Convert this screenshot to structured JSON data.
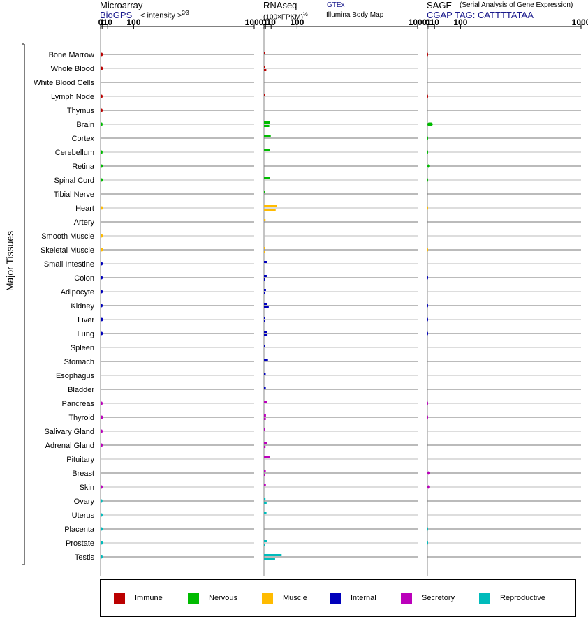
{
  "panels": [
    {
      "id": "microarray",
      "title": "Microarray",
      "subtitle": "BioGPS",
      "scale_prefix": "< intensity >",
      "scale_exp": "2⁄3",
      "title_right": "",
      "source_top": "",
      "source_bottom": ""
    },
    {
      "id": "rnaseq",
      "title": "RNAseq",
      "subtitle": "",
      "scale_prefix": "(100×FPKM)",
      "scale_exp": "½",
      "title_right": "",
      "source_top": "GTEx",
      "source_bottom": "Illumina Body Map"
    },
    {
      "id": "sage",
      "title": "SAGE",
      "subtitle": "CGAP TAG: CATTTTATAA",
      "scale_prefix": "",
      "scale_exp": "",
      "title_right": "(Serial Analysis of Gene Expression)",
      "source_top": "",
      "source_bottom": ""
    }
  ],
  "y_axis_label": "Major Tissues",
  "legend": [
    {
      "label": "Immune",
      "color": "#bb0000"
    },
    {
      "label": "Nervous",
      "color": "#00bb00"
    },
    {
      "label": "Muscle",
      "color": "#ffbb00"
    },
    {
      "label": "Internal",
      "color": "#0000bb"
    },
    {
      "label": "Secretory",
      "color": "#bb00bb"
    },
    {
      "label": "Reproductive",
      "color": "#00bbbb"
    }
  ],
  "chart_data": {
    "type": "bar",
    "orientation": "horizontal",
    "x_scale": "power",
    "x_ticks": [
      "0",
      "1",
      "10",
      "100",
      "1000"
    ],
    "xlim": [
      0,
      1000
    ],
    "categories": [
      "Bone Marrow",
      "Whole Blood",
      "White Blood Cells",
      "Lymph Node",
      "Thymus",
      "Brain",
      "Cortex",
      "Cerebellum",
      "Retina",
      "Spinal Cord",
      "Tibial Nerve",
      "Heart",
      "Artery",
      "Smooth Muscle",
      "Skeletal Muscle",
      "Small Intestine",
      "Colon",
      "Adipocyte",
      "Kidney",
      "Liver",
      "Lung",
      "Spleen",
      "Stomach",
      "Esophagus",
      "Bladder",
      "Pancreas",
      "Thyroid",
      "Salivary Gland",
      "Adrenal Gland",
      "Pituitary",
      "Breast",
      "Skin",
      "Ovary",
      "Uterus",
      "Placenta",
      "Prostate",
      "Testis"
    ],
    "groups": [
      "Immune",
      "Immune",
      "Immune",
      "Immune",
      "Immune",
      "Nervous",
      "Nervous",
      "Nervous",
      "Nervous",
      "Nervous",
      "Nervous",
      "Muscle",
      "Muscle",
      "Muscle",
      "Muscle",
      "Internal",
      "Internal",
      "Internal",
      "Internal",
      "Internal",
      "Internal",
      "Internal",
      "Internal",
      "Internal",
      "Internal",
      "Secretory",
      "Secretory",
      "Secretory",
      "Secretory",
      "Secretory",
      "Secretory",
      "Secretory",
      "Reproductive",
      "Reproductive",
      "Reproductive",
      "Reproductive",
      "Reproductive"
    ],
    "microarray": [
      1.8,
      1.8,
      null,
      1.6,
      1.6,
      1.5,
      null,
      1.5,
      1.8,
      1.8,
      null,
      2.1,
      null,
      1.8,
      2.0,
      1.7,
      1.7,
      1.7,
      1.6,
      2.0,
      1.8,
      null,
      null,
      null,
      null,
      1.6,
      1.9,
      1.6,
      1.6,
      null,
      null,
      1.6,
      1.4,
      1.6,
      1.7,
      1.9,
      1.6
    ],
    "rnaseq_gtex": [
      0.73,
      0.76,
      null,
      0.005,
      null,
      8.0,
      9.3,
      8.0,
      null,
      7.2,
      0.8,
      25,
      1.04,
      null,
      0.6,
      3.0,
      2.4,
      1.5,
      3.2,
      0.8,
      3.2,
      0.8,
      4.2,
      1.2,
      1.3,
      3.2,
      1.5,
      0.7,
      2.8,
      8.0,
      1.3,
      1.4,
      1.0,
      2.1,
      null,
      3.4,
      39
    ],
    "rnaseq_ibm": [
      null,
      1.9,
      null,
      null,
      null,
      6.4,
      null,
      null,
      null,
      null,
      null,
      21,
      null,
      null,
      0.008,
      null,
      0.55,
      0.008,
      5.5,
      0.8,
      3.5,
      null,
      null,
      null,
      null,
      null,
      1.3,
      null,
      1.0,
      null,
      0.55,
      null,
      2.3,
      null,
      null,
      0.8,
      19.5
    ],
    "sage": [
      0.003,
      null,
      null,
      0.001,
      null,
      6.5,
      0.001,
      0.001,
      2.2,
      0.002,
      null,
      0.0,
      null,
      null,
      0.0,
      null,
      0.001,
      null,
      0.002,
      0.002,
      0.002,
      null,
      null,
      null,
      null,
      0.002,
      0.002,
      null,
      null,
      null,
      2.5,
      2.3,
      null,
      null,
      0.001,
      0.001,
      null
    ]
  }
}
